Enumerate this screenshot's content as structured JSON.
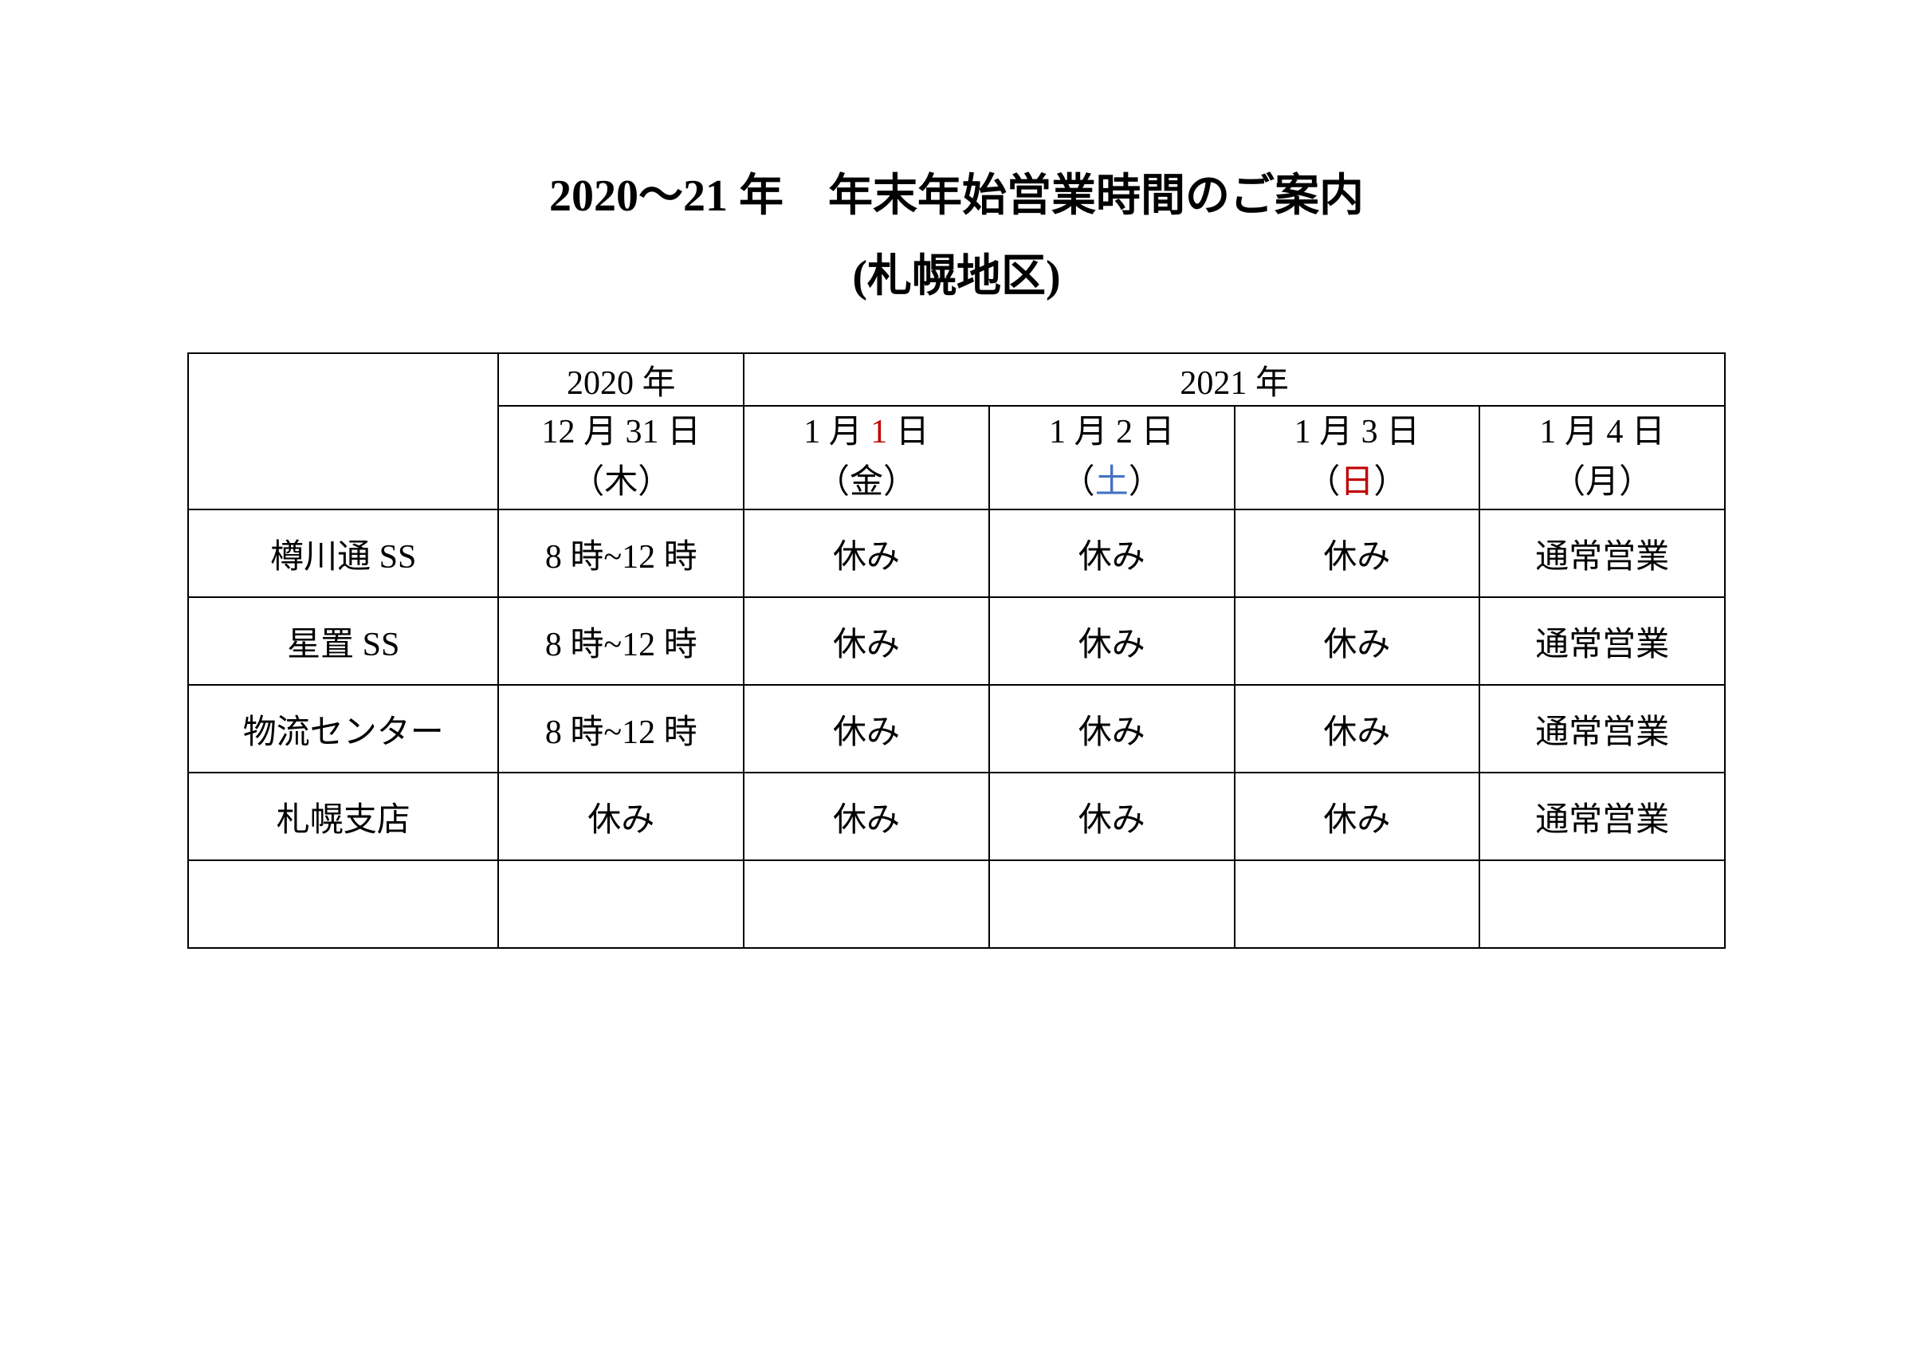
{
  "title": {
    "line1": "2020～21 年　年末年始営業時間のご案内",
    "line2": "(札幌地区)"
  },
  "table": {
    "year_headers": {
      "year1": "2020 年",
      "year2": "2021 年"
    },
    "date_headers": [
      {
        "date": "12 月 31 日",
        "day": "（木）",
        "day_color": "black"
      },
      {
        "date_pre": "1 月 ",
        "date_num": "1",
        "date_post": " 日",
        "day": "（金）",
        "num_color": "red",
        "day_color": "black"
      },
      {
        "date": "1 月 2 日",
        "day_pre": "（",
        "day_mid": "土",
        "day_post": "）",
        "day_color": "blue"
      },
      {
        "date": "1 月 3 日",
        "day_pre": "（",
        "day_mid": "日",
        "day_post": "）",
        "day_color": "red"
      },
      {
        "date": "1 月 4 日",
        "day": "（月）",
        "day_color": "black"
      }
    ],
    "rows": [
      {
        "name": "樽川通 SS",
        "cells": [
          "8 時~12 時",
          "休み",
          "休み",
          "休み",
          "通常営業"
        ]
      },
      {
        "name": "星置 SS",
        "cells": [
          "8 時~12 時",
          "休み",
          "休み",
          "休み",
          "通常営業"
        ]
      },
      {
        "name": "物流センター",
        "cells": [
          "8 時~12 時",
          "休み",
          "休み",
          "休み",
          "通常営業"
        ]
      },
      {
        "name": "札幌支店",
        "cells": [
          "休み",
          "休み",
          "休み",
          "休み",
          "通常営業"
        ]
      }
    ]
  },
  "colors": {
    "text_black": "#000000",
    "text_red": "#c00000",
    "text_blue": "#4472c4",
    "border": "#000000",
    "background": "#ffffff"
  },
  "typography": {
    "title_fontsize": 56,
    "cell_fontsize": 42,
    "font_family": "MS Mincho"
  }
}
